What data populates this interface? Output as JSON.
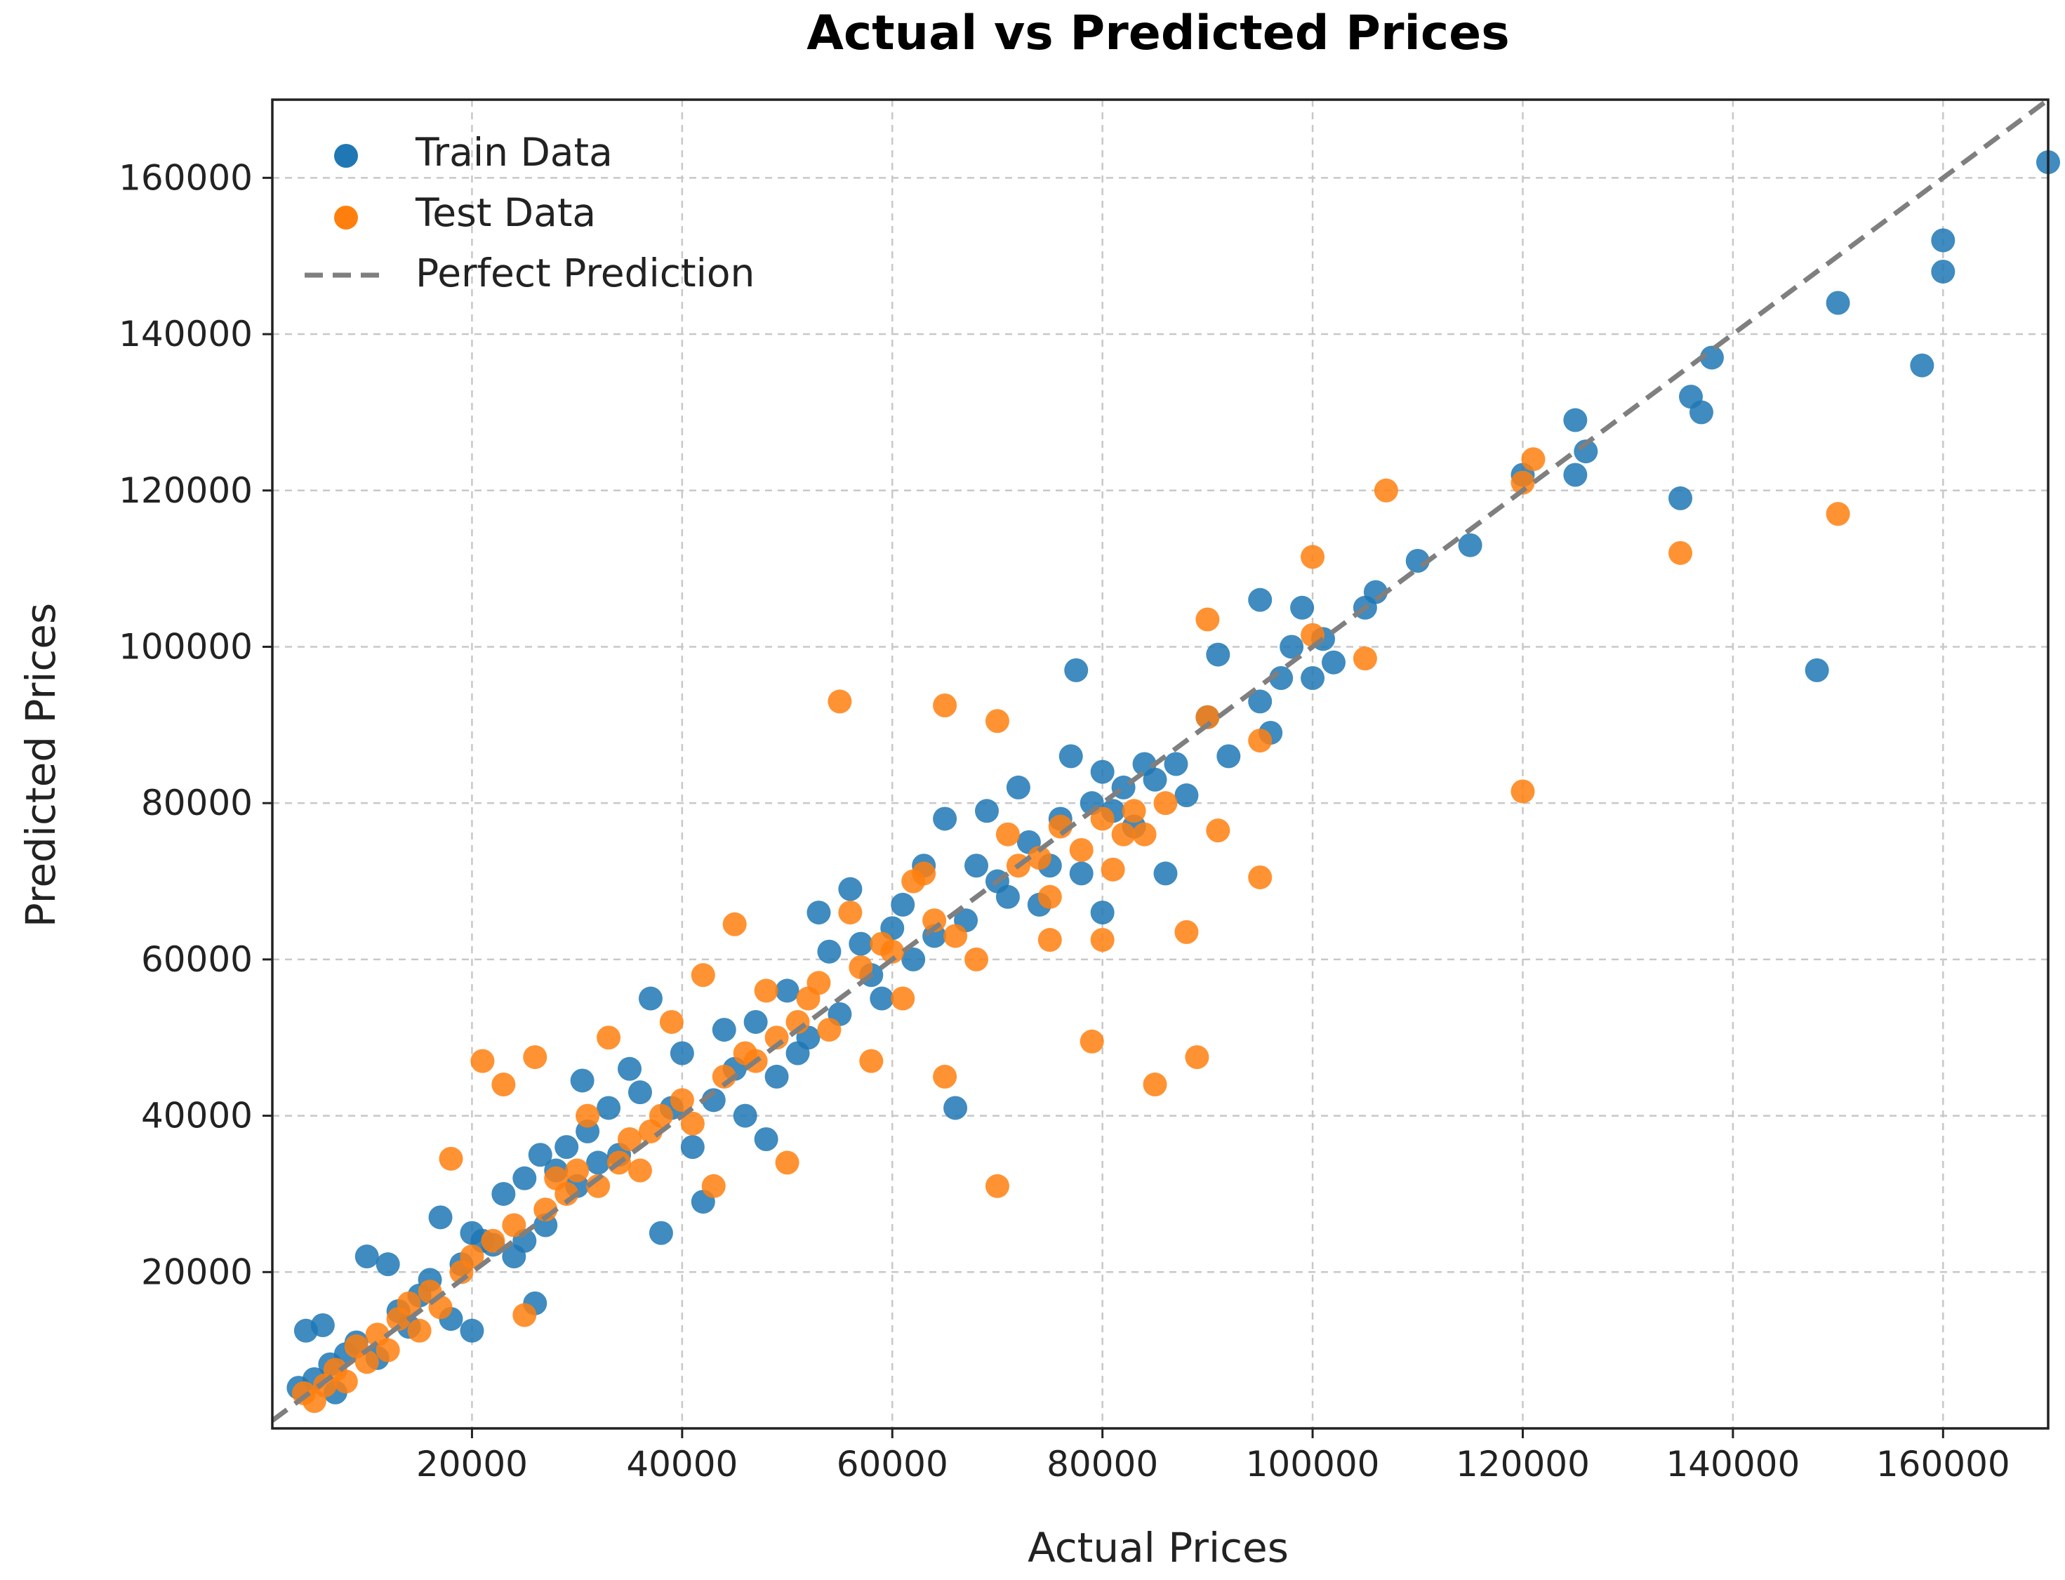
{
  "chart_data": {
    "type": "scatter",
    "title": "Actual vs Predicted Prices",
    "xlabel": "Actual Prices",
    "ylabel": "Predicted Prices",
    "xlim": [
      1000,
      170000
    ],
    "ylim": [
      0,
      170000
    ],
    "xticks": [
      20000,
      40000,
      60000,
      80000,
      100000,
      120000,
      140000,
      160000
    ],
    "yticks": [
      20000,
      40000,
      60000,
      80000,
      100000,
      120000,
      140000,
      160000
    ],
    "xtick_labels": [
      "20000",
      "40000",
      "60000",
      "80000",
      "100000",
      "120000",
      "140000",
      "160000"
    ],
    "ytick_labels": [
      "20000",
      "40000",
      "60000",
      "80000",
      "100000",
      "120000",
      "140000",
      "160000"
    ],
    "grid": true,
    "legend_position": "top-left",
    "series": [
      {
        "name": "Train Data",
        "color": "#1f77b4",
        "points": [
          [
            3500,
            5200
          ],
          [
            4200,
            12500
          ],
          [
            5000,
            6300
          ],
          [
            5800,
            13200
          ],
          [
            6500,
            8200
          ],
          [
            7000,
            4600
          ],
          [
            8000,
            9500
          ],
          [
            9000,
            11000
          ],
          [
            10000,
            22000
          ],
          [
            11000,
            9000
          ],
          [
            12000,
            21000
          ],
          [
            13000,
            15000
          ],
          [
            14000,
            13000
          ],
          [
            15000,
            17000
          ],
          [
            16000,
            19000
          ],
          [
            17000,
            27000
          ],
          [
            18000,
            14000
          ],
          [
            19000,
            21000
          ],
          [
            20000,
            25000
          ],
          [
            20000,
            12500
          ],
          [
            21000,
            24000
          ],
          [
            22000,
            23500
          ],
          [
            23000,
            30000
          ],
          [
            24000,
            22000
          ],
          [
            25000,
            32000
          ],
          [
            25000,
            24000
          ],
          [
            26000,
            16000
          ],
          [
            26500,
            35000
          ],
          [
            27000,
            26000
          ],
          [
            28000,
            33000
          ],
          [
            29000,
            36000
          ],
          [
            30000,
            31000
          ],
          [
            30500,
            44500
          ],
          [
            31000,
            38000
          ],
          [
            32000,
            34000
          ],
          [
            33000,
            41000
          ],
          [
            34000,
            35000
          ],
          [
            35000,
            46000
          ],
          [
            36000,
            43000
          ],
          [
            37000,
            55000
          ],
          [
            38000,
            25000
          ],
          [
            39000,
            41000
          ],
          [
            40000,
            48000
          ],
          [
            41000,
            36000
          ],
          [
            42000,
            29000
          ],
          [
            43000,
            42000
          ],
          [
            44000,
            51000
          ],
          [
            45000,
            46000
          ],
          [
            46000,
            40000
          ],
          [
            47000,
            52000
          ],
          [
            48000,
            37000
          ],
          [
            49000,
            45000
          ],
          [
            50000,
            56000
          ],
          [
            51000,
            48000
          ],
          [
            52000,
            50000
          ],
          [
            53000,
            66000
          ],
          [
            54000,
            61000
          ],
          [
            55000,
            53000
          ],
          [
            56000,
            69000
          ],
          [
            57000,
            62000
          ],
          [
            58000,
            58000
          ],
          [
            59000,
            55000
          ],
          [
            60000,
            64000
          ],
          [
            61000,
            67000
          ],
          [
            62000,
            60000
          ],
          [
            63000,
            72000
          ],
          [
            64000,
            63000
          ],
          [
            65000,
            78000
          ],
          [
            66000,
            41000
          ],
          [
            67000,
            65000
          ],
          [
            68000,
            72000
          ],
          [
            69000,
            79000
          ],
          [
            70000,
            70000
          ],
          [
            71000,
            68000
          ],
          [
            72000,
            82000
          ],
          [
            73000,
            75000
          ],
          [
            74000,
            67000
          ],
          [
            75000,
            72000
          ],
          [
            76000,
            78000
          ],
          [
            77000,
            86000
          ],
          [
            77500,
            97000
          ],
          [
            78000,
            71000
          ],
          [
            79000,
            80000
          ],
          [
            80000,
            84000
          ],
          [
            80000,
            66000
          ],
          [
            81000,
            79000
          ],
          [
            82000,
            82000
          ],
          [
            83000,
            77000
          ],
          [
            84000,
            85000
          ],
          [
            85000,
            83000
          ],
          [
            86000,
            71000
          ],
          [
            87000,
            85000
          ],
          [
            88000,
            81000
          ],
          [
            90000,
            91000
          ],
          [
            91000,
            99000
          ],
          [
            92000,
            86000
          ],
          [
            95000,
            106000
          ],
          [
            95000,
            93000
          ],
          [
            96000,
            89000
          ],
          [
            97000,
            96000
          ],
          [
            98000,
            100000
          ],
          [
            99000,
            105000
          ],
          [
            100000,
            96000
          ],
          [
            101000,
            101000
          ],
          [
            102000,
            98000
          ],
          [
            105000,
            105000
          ],
          [
            106000,
            107000
          ],
          [
            110000,
            111000
          ],
          [
            115000,
            113000
          ],
          [
            120000,
            122000
          ],
          [
            125000,
            129000
          ],
          [
            125000,
            122000
          ],
          [
            126000,
            125000
          ],
          [
            135000,
            119000
          ],
          [
            136000,
            132000
          ],
          [
            137000,
            130000
          ],
          [
            138000,
            137000
          ],
          [
            148000,
            97000
          ],
          [
            150000,
            144000
          ],
          [
            158000,
            136000
          ],
          [
            160000,
            152000
          ],
          [
            160000,
            148000
          ],
          [
            170000,
            162000
          ]
        ]
      },
      {
        "name": "Test Data",
        "color": "#ff7f0e",
        "points": [
          [
            4000,
            4500
          ],
          [
            5000,
            3500
          ],
          [
            6000,
            5500
          ],
          [
            7000,
            7500
          ],
          [
            8000,
            6000
          ],
          [
            9000,
            10500
          ],
          [
            10000,
            8500
          ],
          [
            11000,
            12000
          ],
          [
            12000,
            10000
          ],
          [
            13000,
            14000
          ],
          [
            14000,
            16000
          ],
          [
            15000,
            12500
          ],
          [
            16000,
            17500
          ],
          [
            17000,
            15500
          ],
          [
            18000,
            34500
          ],
          [
            19000,
            20000
          ],
          [
            20000,
            22000
          ],
          [
            21000,
            47000
          ],
          [
            22000,
            24000
          ],
          [
            23000,
            44000
          ],
          [
            24000,
            26000
          ],
          [
            25000,
            14500
          ],
          [
            26000,
            47500
          ],
          [
            27000,
            28000
          ],
          [
            28000,
            32000
          ],
          [
            29000,
            30000
          ],
          [
            30000,
            33000
          ],
          [
            31000,
            40000
          ],
          [
            32000,
            31000
          ],
          [
            33000,
            50000
          ],
          [
            34000,
            34000
          ],
          [
            35000,
            37000
          ],
          [
            36000,
            33000
          ],
          [
            37000,
            38000
          ],
          [
            38000,
            40000
          ],
          [
            39000,
            52000
          ],
          [
            40000,
            42000
          ],
          [
            41000,
            39000
          ],
          [
            42000,
            58000
          ],
          [
            43000,
            31000
          ],
          [
            44000,
            45000
          ],
          [
            45000,
            64500
          ],
          [
            46000,
            48000
          ],
          [
            47000,
            47000
          ],
          [
            48000,
            56000
          ],
          [
            49000,
            50000
          ],
          [
            50000,
            34000
          ],
          [
            51000,
            52000
          ],
          [
            52000,
            55000
          ],
          [
            53000,
            57000
          ],
          [
            54000,
            51000
          ],
          [
            55000,
            93000
          ],
          [
            56000,
            66000
          ],
          [
            57000,
            59000
          ],
          [
            58000,
            47000
          ],
          [
            59000,
            62000
          ],
          [
            60000,
            61000
          ],
          [
            61000,
            55000
          ],
          [
            62000,
            70000
          ],
          [
            63000,
            71000
          ],
          [
            64000,
            65000
          ],
          [
            65000,
            92500
          ],
          [
            65000,
            45000
          ],
          [
            66000,
            63000
          ],
          [
            68000,
            60000
          ],
          [
            70000,
            90500
          ],
          [
            70000,
            31000
          ],
          [
            71000,
            76000
          ],
          [
            72000,
            72000
          ],
          [
            74000,
            73000
          ],
          [
            75000,
            62500
          ],
          [
            75000,
            68000
          ],
          [
            76000,
            77000
          ],
          [
            78000,
            74000
          ],
          [
            79000,
            49500
          ],
          [
            80000,
            62500
          ],
          [
            80000,
            78000
          ],
          [
            81000,
            71500
          ],
          [
            82000,
            76000
          ],
          [
            83000,
            79000
          ],
          [
            84000,
            76000
          ],
          [
            85000,
            44000
          ],
          [
            86000,
            80000
          ],
          [
            88000,
            63500
          ],
          [
            89000,
            47500
          ],
          [
            90000,
            103500
          ],
          [
            90000,
            91000
          ],
          [
            91000,
            76500
          ],
          [
            95000,
            70500
          ],
          [
            95000,
            88000
          ],
          [
            100000,
            111500
          ],
          [
            100000,
            101500
          ],
          [
            105000,
            98500
          ],
          [
            107000,
            120000
          ],
          [
            120000,
            81500
          ],
          [
            120000,
            121000
          ],
          [
            121000,
            124000
          ],
          [
            135000,
            112000
          ],
          [
            150000,
            117000
          ]
        ]
      },
      {
        "name": "Perfect Prediction",
        "color": "#7f7f7f",
        "points": [
          [
            0,
            0
          ],
          [
            170000,
            170000
          ]
        ]
      }
    ]
  }
}
